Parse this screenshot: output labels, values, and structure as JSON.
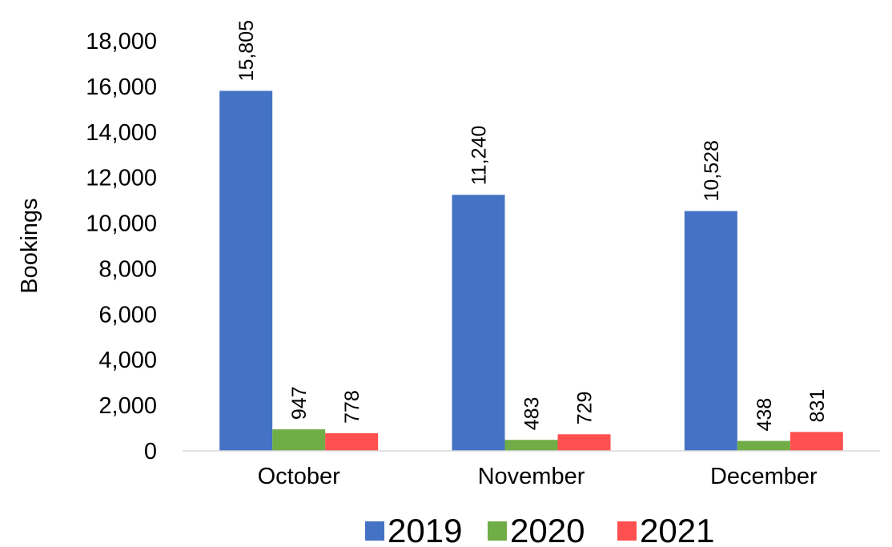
{
  "chart_data": {
    "type": "bar",
    "title": "",
    "xlabel": "",
    "ylabel": "Bookings",
    "ylim": [
      0,
      18000
    ],
    "yticks": [
      0,
      2000,
      4000,
      6000,
      8000,
      10000,
      12000,
      14000,
      16000,
      18000
    ],
    "ytick_labels": [
      "0",
      "2,000",
      "4,000",
      "6,000",
      "8,000",
      "10,000",
      "12,000",
      "14,000",
      "16,000",
      "18,000"
    ],
    "categories": [
      "October",
      "November",
      "December"
    ],
    "series": [
      {
        "name": "2019",
        "color": "#4472C4",
        "values": [
          15805,
          11240,
          10528
        ],
        "labels": [
          "15,805",
          "11,240",
          "10,528"
        ]
      },
      {
        "name": "2020",
        "color": "#70AD47",
        "values": [
          947,
          483,
          438
        ],
        "labels": [
          "947",
          "483",
          "438"
        ]
      },
      {
        "name": "2021",
        "color": "#FF5050",
        "values": [
          778,
          729,
          831
        ],
        "labels": [
          "778",
          "729",
          "831"
        ]
      }
    ],
    "grid": false,
    "legend_position": "bottom",
    "data_labels_rotation": "vertical"
  }
}
